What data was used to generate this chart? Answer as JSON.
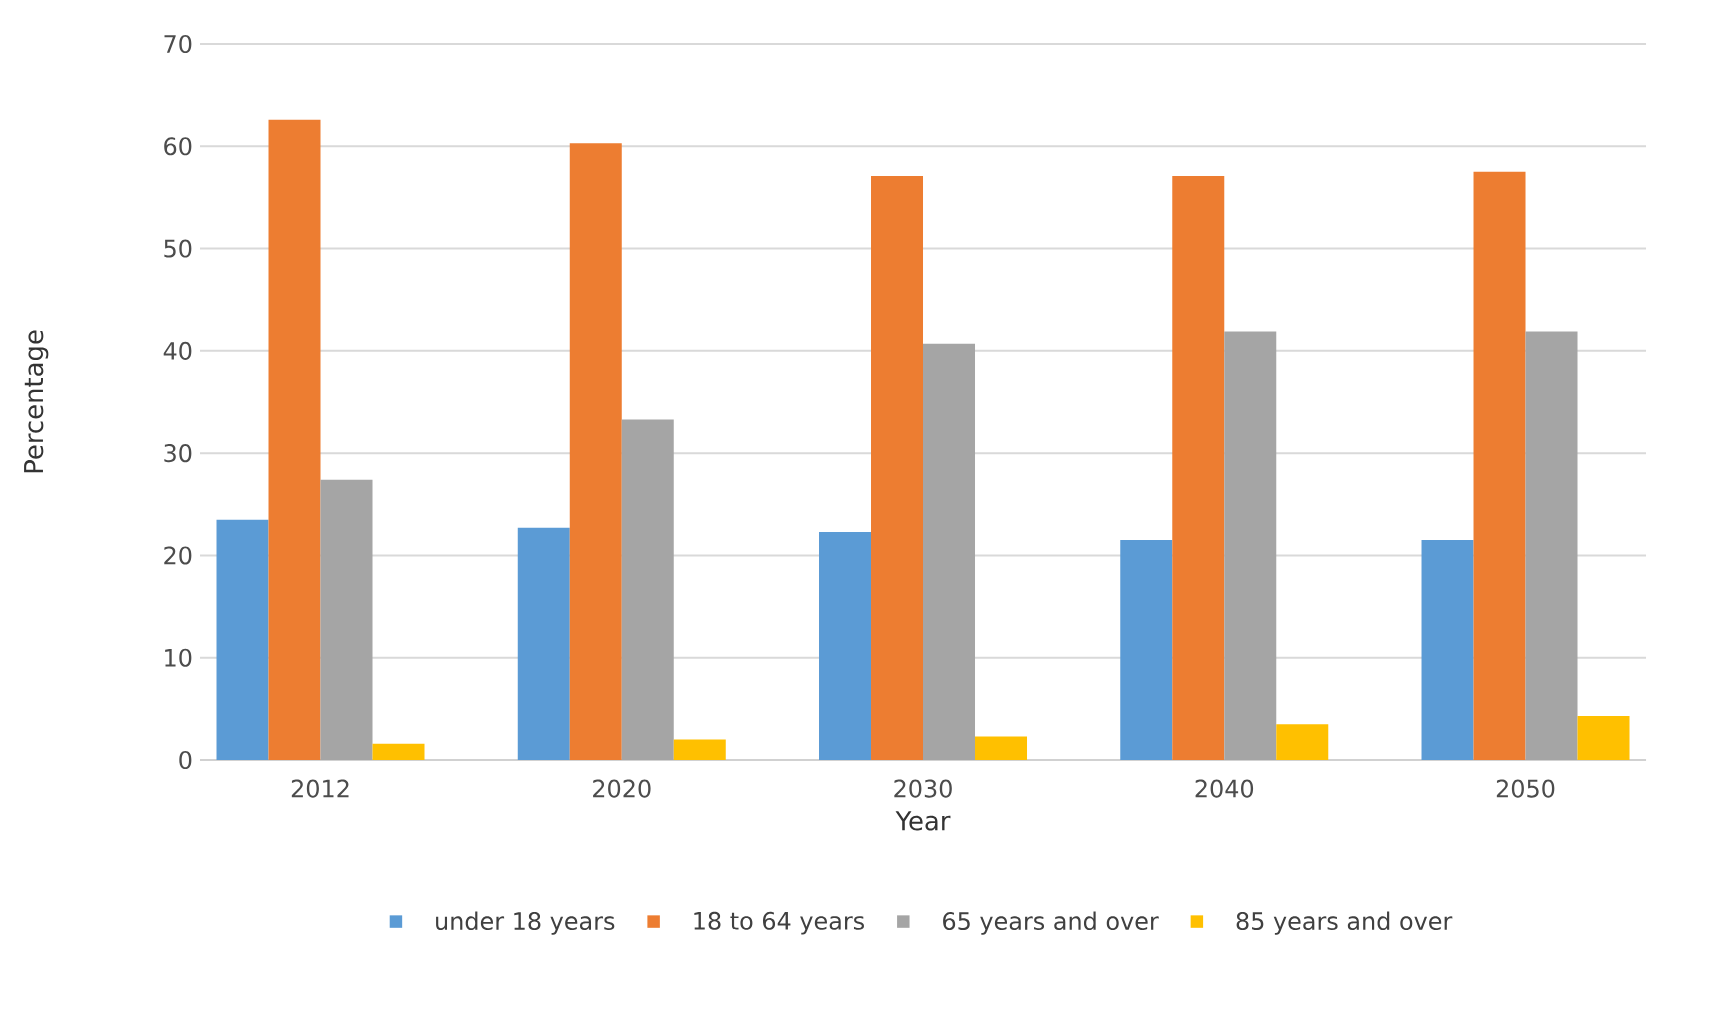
{
  "chart_data": {
    "type": "bar",
    "xlabel": "Year",
    "ylabel": "Percentage",
    "categories": [
      "2012",
      "2020",
      "2030",
      "2040",
      "2050"
    ],
    "series": [
      {
        "name": "under 18 years",
        "color": "#5b9bd5",
        "values": [
          23.5,
          22.7,
          22.3,
          21.5,
          21.5
        ]
      },
      {
        "name": "18 to 64 years",
        "color": "#ed7d31",
        "values": [
          62.6,
          60.3,
          57.1,
          57.1,
          57.5
        ]
      },
      {
        "name": "65 years and over",
        "color": "#a5a5a5",
        "values": [
          27.4,
          33.3,
          40.7,
          41.9,
          41.9
        ]
      },
      {
        "name": "85 years and over",
        "color": "#ffc000",
        "values": [
          1.6,
          2.0,
          2.3,
          3.5,
          4.3
        ]
      }
    ],
    "ylim": [
      0,
      70
    ],
    "yticks": [
      0,
      10,
      20,
      30,
      40,
      50,
      60,
      70
    ],
    "grid": "y",
    "legend": "bottom"
  }
}
